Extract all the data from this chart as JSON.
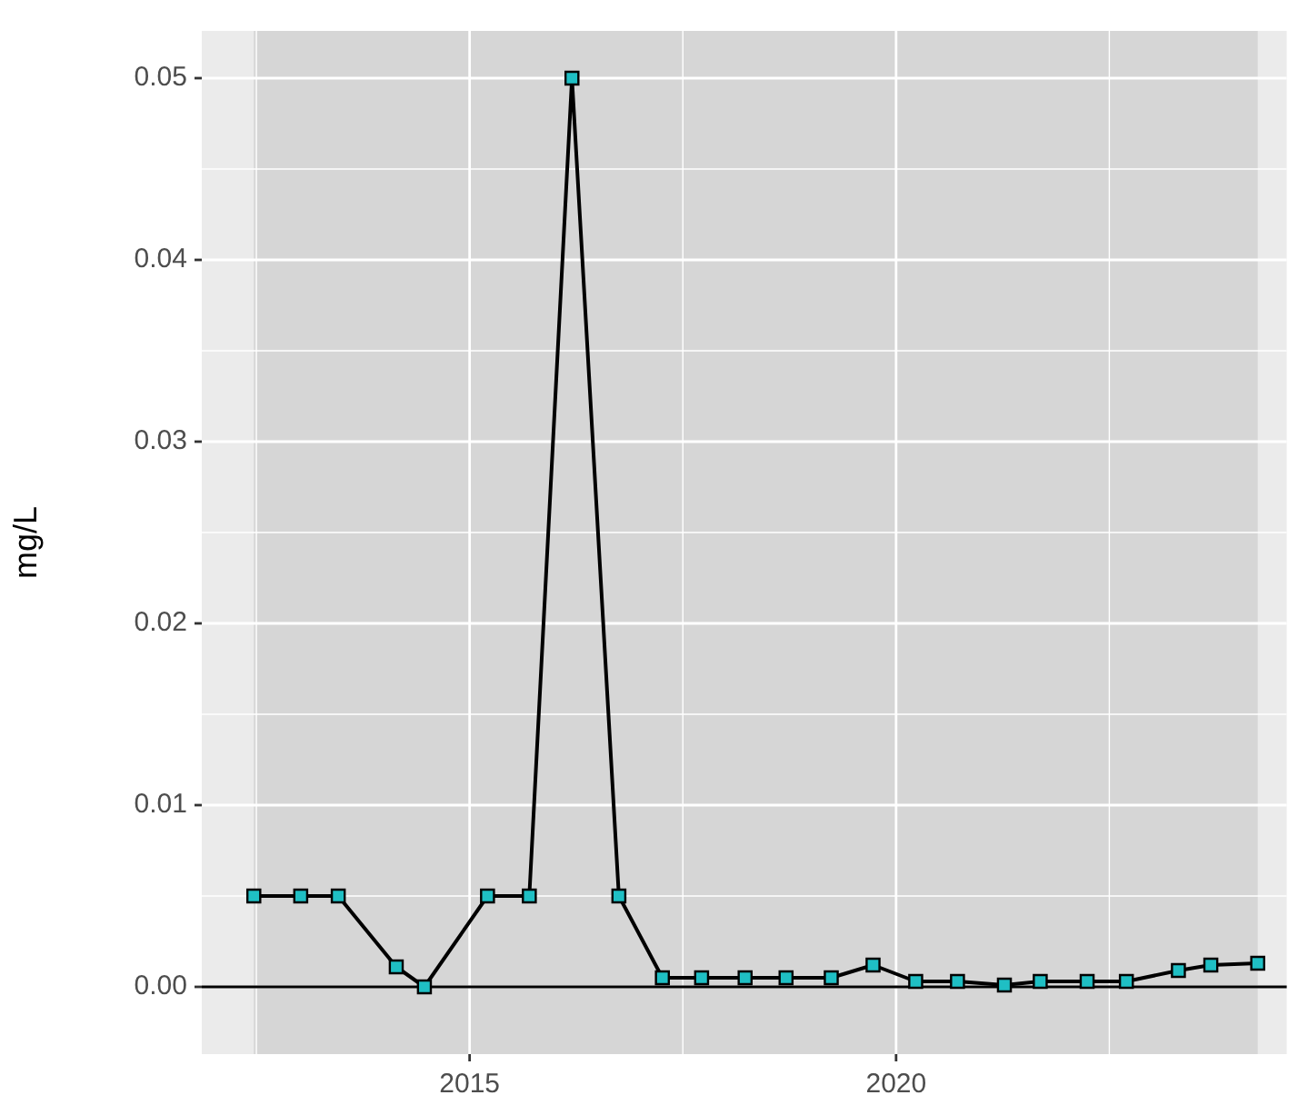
{
  "chart_data": {
    "type": "line",
    "ylabel": "mg/L",
    "x": [
      2012.47,
      2013.02,
      2013.46,
      2014.14,
      2014.47,
      2015.21,
      2015.7,
      2016.2,
      2016.75,
      2017.26,
      2017.72,
      2018.23,
      2018.71,
      2019.24,
      2019.73,
      2020.23,
      2020.72,
      2021.27,
      2021.69,
      2022.24,
      2022.7,
      2023.31,
      2023.69,
      2024.24
    ],
    "series": [
      {
        "color": "#1fbfc4",
        "values": [
          0.005,
          0.005,
          0.005,
          0.0011,
          0,
          0.005,
          0.005,
          0.05,
          0.005,
          0.0005,
          0.0005,
          0.0005,
          0.0005,
          0.0005,
          0.0012,
          0.0003,
          0.0003,
          0.0001,
          0.0003,
          0.0003,
          0.0003,
          0.0009,
          0.0012,
          0.0013
        ]
      }
    ],
    "xlim": [
      2011.86,
      2024.58
    ],
    "xticks": [
      {
        "value": 2012.5,
        "label": null
      },
      2015,
      {
        "value": 2017.5,
        "label": null
      },
      2020,
      {
        "value": 2022.5,
        "label": null
      }
    ],
    "ylim": [
      -0.0037,
      0.0526
    ],
    "yticks": [
      {
        "value": 0,
        "label": "0.00"
      },
      {
        "value": 0.005,
        "label": null
      },
      0.01,
      {
        "value": 0.015,
        "label": null
      },
      0.02,
      {
        "value": 0.025,
        "label": null
      },
      0.03,
      {
        "value": 0.035,
        "label": null
      },
      0.04,
      {
        "value": 0.045,
        "label": null
      },
      0.05
    ],
    "bands": [
      {
        "axis": "x",
        "from": 2012.47,
        "to": 2024.24,
        "color": "#d6d6d6"
      }
    ],
    "ref_lines": [
      {
        "axis": "y",
        "value": 0,
        "color": "#000000"
      }
    ],
    "grid": true,
    "legend": false,
    "marker": "square",
    "line_style": "solid"
  }
}
